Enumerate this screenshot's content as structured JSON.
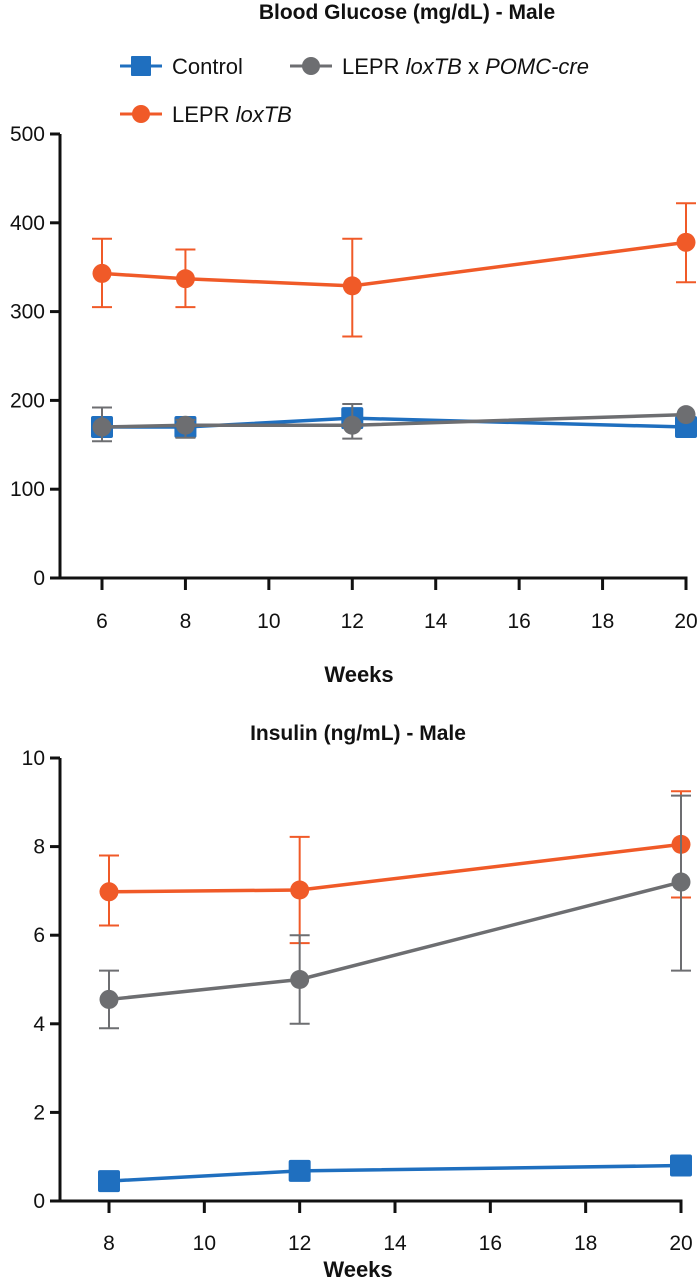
{
  "legend": {
    "entries": [
      {
        "key": "control",
        "label": "Control",
        "italic_parts": [],
        "marker": "square",
        "color": "#1f6fbf"
      },
      {
        "key": "cre",
        "label": "LEPR loxTB x POMC-cre",
        "parts": [
          {
            "t": "LEPR ",
            "i": false
          },
          {
            "t": "loxTB",
            "i": true
          },
          {
            "t": " x ",
            "i": false
          },
          {
            "t": "POMC-cre",
            "i": true
          }
        ],
        "marker": "circle",
        "color": "#6d6e71"
      },
      {
        "key": "loxtb",
        "label": "LEPR loxTB",
        "parts": [
          {
            "t": "LEPR ",
            "i": false
          },
          {
            "t": "loxTB",
            "i": true
          }
        ],
        "marker": "circle",
        "color": "#f05a28"
      }
    ]
  },
  "chart_data": [
    {
      "type": "line",
      "title": "Blood Glucose (mg/dL) - Male",
      "xlabel": "Weeks",
      "ylabel": "",
      "xlim": [
        5,
        20
      ],
      "ylim": [
        0,
        500
      ],
      "xticks": [
        6,
        8,
        10,
        12,
        14,
        16,
        18,
        20
      ],
      "yticks": [
        0,
        100,
        200,
        300,
        400,
        500
      ],
      "grid": false,
      "legend_position": "top",
      "series": [
        {
          "key": "loxtb",
          "name": "LEPR loxTB",
          "color": "#f05a28",
          "marker": "circle",
          "x": [
            6,
            8,
            12,
            20
          ],
          "values": [
            343,
            337,
            329,
            378
          ],
          "err_upper": [
            382,
            370,
            382,
            422
          ],
          "err_lower": [
            305,
            305,
            272,
            333
          ]
        },
        {
          "key": "control",
          "name": "Control",
          "color": "#1f6fbf",
          "marker": "square",
          "x": [
            6,
            8,
            12,
            20
          ],
          "values": [
            170,
            170,
            180,
            170
          ],
          "err_upper": [
            180,
            178,
            188,
            170
          ],
          "err_lower": [
            160,
            162,
            172,
            170
          ]
        },
        {
          "key": "cre",
          "name": "LEPR loxTB x POMC-cre",
          "color": "#6d6e71",
          "marker": "circle",
          "x": [
            6,
            8,
            12,
            20
          ],
          "values": [
            170,
            172,
            172,
            184
          ],
          "err_upper": [
            192,
            178,
            196,
            184
          ],
          "err_lower": [
            154,
            158,
            157,
            184
          ]
        }
      ]
    },
    {
      "type": "line",
      "title": "Insulin (ng/mL) - Male",
      "xlabel": "Weeks",
      "ylabel": "",
      "xlim": [
        7,
        20
      ],
      "ylim": [
        0,
        10
      ],
      "xticks": [
        8,
        10,
        12,
        14,
        16,
        18,
        20
      ],
      "yticks": [
        0,
        2,
        4,
        6,
        8,
        10
      ],
      "grid": false,
      "series": [
        {
          "key": "loxtb",
          "name": "LEPR loxTB",
          "color": "#f05a28",
          "marker": "circle",
          "x": [
            8,
            12,
            20
          ],
          "values": [
            6.98,
            7.02,
            8.05
          ],
          "err_upper": [
            7.8,
            8.22,
            9.25
          ],
          "err_lower": [
            6.22,
            5.82,
            6.85
          ]
        },
        {
          "key": "cre",
          "name": "LEPR loxTB x POMC-cre",
          "color": "#6d6e71",
          "marker": "circle",
          "x": [
            8,
            12,
            20
          ],
          "values": [
            4.55,
            5.0,
            7.2
          ],
          "err_upper": [
            5.2,
            6.0,
            9.15
          ],
          "err_lower": [
            3.9,
            4.0,
            5.2
          ]
        },
        {
          "key": "control",
          "name": "Control",
          "color": "#1f6fbf",
          "marker": "square",
          "x": [
            8,
            12,
            20
          ],
          "values": [
            0.45,
            0.68,
            0.8
          ],
          "err_upper": [
            0.45,
            0.68,
            0.8
          ],
          "err_lower": [
            0.45,
            0.68,
            0.8
          ]
        }
      ]
    }
  ]
}
